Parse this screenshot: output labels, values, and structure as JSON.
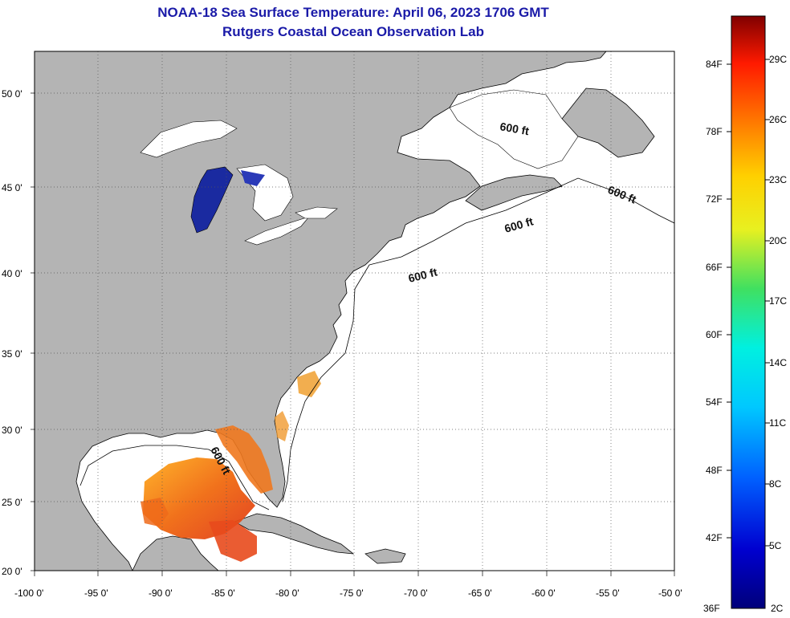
{
  "title": "NOAA-18 Sea Surface Temperature:  April 06, 2023 1706 GMT",
  "subtitle": "Rutgers Coastal Ocean Observation Lab",
  "lat_labels": [
    "50 0'",
    "45 0'",
    "40 0'",
    "35 0'",
    "30 0'",
    "25 0'",
    "20 0'"
  ],
  "lon_labels": [
    "-100 0'",
    "-95 0'",
    "-90 0'",
    "-85 0'",
    "-80 0'",
    "-75 0'",
    "-70 0'",
    "-65 0'",
    "-60 0'",
    "-55 0'",
    "-50 0'"
  ],
  "colorbar": {
    "fahrenheit": [
      "84F",
      "78F",
      "72F",
      "66F",
      "60F",
      "54F",
      "48F",
      "42F",
      "36F"
    ],
    "celsius": [
      "29C",
      "26C",
      "23C",
      "20C",
      "17C",
      "14C",
      "11C",
      "8C",
      "5C",
      "2C"
    ]
  },
  "contour_labels": [
    "600 ft",
    "600 ft",
    "600 ft",
    "600 ft",
    "600 ft"
  ],
  "colors": {
    "title": "#1a1aa8",
    "land": "#b4b4b4",
    "ocean": "#ffffff",
    "lake_cold": "#1a2aa0",
    "sst_warm": "#e8501a"
  }
}
